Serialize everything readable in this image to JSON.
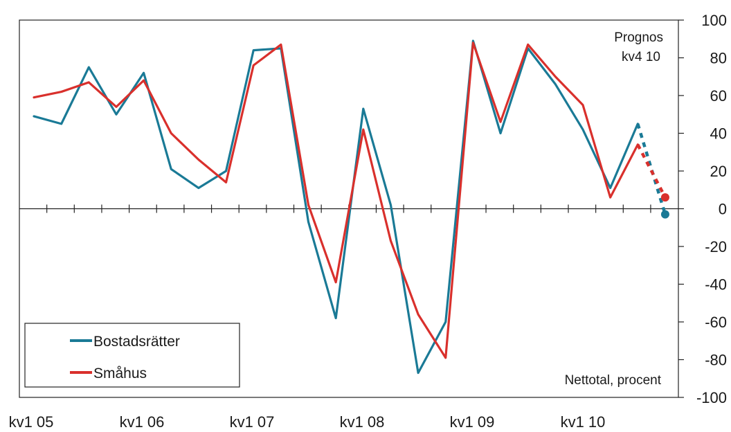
{
  "chart_data": {
    "type": "line",
    "title": "",
    "xlabel": "",
    "ylabel": "",
    "ylim": [
      -100,
      100
    ],
    "y_ticks": [
      "100",
      "80",
      "60",
      "40",
      "20",
      "0",
      "-20",
      "-40",
      "-60",
      "-80",
      "-100"
    ],
    "x_tick_labels": [
      "kv1 05",
      "kv1 06",
      "kv1 07",
      "kv1 08",
      "kv1 09",
      "kv1 10"
    ],
    "categories": [
      "kv1 05",
      "kv2 05",
      "kv3 05",
      "kv4 05",
      "kv1 06",
      "kv2 06",
      "kv3 06",
      "kv4 06",
      "kv1 07",
      "kv2 07",
      "kv3 07",
      "kv4 07",
      "kv1 08",
      "kv2 08",
      "kv3 08",
      "kv4 08",
      "kv1 09",
      "kv2 09",
      "kv3 09",
      "kv4 09",
      "kv1 10",
      "kv2 10",
      "kv3 10",
      "kv4 10"
    ],
    "series": [
      {
        "name": "Bostadsrätter",
        "color": "#1a7a96",
        "values": [
          49,
          45,
          75,
          50,
          72,
          21,
          11,
          20,
          84,
          85,
          -7,
          -58,
          53,
          2,
          -87,
          -60,
          89,
          40,
          85,
          66,
          42,
          11,
          45,
          -3
        ],
        "forecast_from_index": 22
      },
      {
        "name": "Småhus",
        "color": "#d9302c",
        "values": [
          59,
          62,
          67,
          54,
          68,
          40,
          26,
          14,
          76,
          87,
          2,
          -39,
          42,
          -17,
          -56,
          -79,
          88,
          46,
          87,
          70,
          55,
          6,
          34,
          6
        ],
        "forecast_from_index": 22
      }
    ],
    "grid": false,
    "legend": "bottom-left",
    "annotations": {
      "forecast_line1": "Prognos",
      "forecast_line2": "kv4 10",
      "unit_note": "Nettotal, procent"
    }
  }
}
